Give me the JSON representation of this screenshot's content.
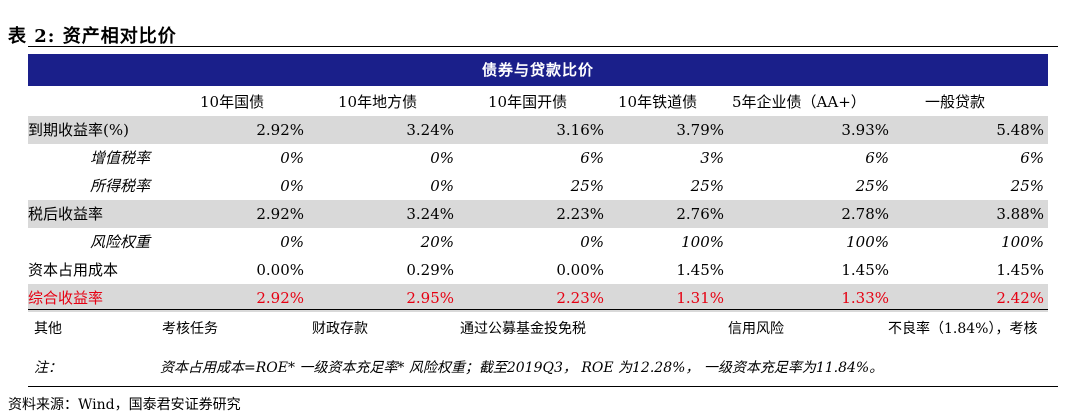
{
  "title": "表 2:  资产相对比价",
  "banner": "债券与贷款比价",
  "columns": [
    "10年国债",
    "10年地方债",
    "10年国开债",
    "10年铁道债",
    "5年企业债（AA+）",
    "一般贷款"
  ],
  "rows": [
    {
      "label": "到期收益率(%)",
      "values": [
        "2.92%",
        "3.24%",
        "3.16%",
        "3.79%",
        "3.93%",
        "5.48%"
      ]
    },
    {
      "label": "增值税率",
      "values": [
        "0%",
        "0%",
        "6%",
        "3%",
        "6%",
        "6%"
      ]
    },
    {
      "label": "所得税率",
      "values": [
        "0%",
        "0%",
        "25%",
        "25%",
        "25%",
        "25%"
      ]
    },
    {
      "label": "税后收益率",
      "values": [
        "2.92%",
        "3.24%",
        "2.23%",
        "2.76%",
        "2.78%",
        "3.88%"
      ]
    },
    {
      "label": "风险权重",
      "values": [
        "0%",
        "20%",
        "0%",
        "100%",
        "100%",
        "100%"
      ]
    },
    {
      "label": "资本占用成本",
      "values": [
        "0.00%",
        "0.29%",
        "0.00%",
        "1.45%",
        "1.45%",
        "1.45%"
      ]
    },
    {
      "label": "综合收益率",
      "values": [
        "2.92%",
        "2.95%",
        "2.23%",
        "1.31%",
        "1.33%",
        "2.42%"
      ]
    }
  ],
  "other": {
    "label": "其他",
    "items": [
      "考核任务",
      "财政存款",
      "通过公募基金投免税",
      "信用风险",
      "不良率（1.84%），考核"
    ]
  },
  "note": {
    "label": "注：",
    "text": "资本占用成本=ROE* 一级资本充足率* 风险权重；截至2019Q3， ROE 为12.28%， 一级资本充足率为11.84%。"
  },
  "source": "资料来源：Wind，国泰君安证券研究",
  "colors": {
    "banner": "#1a1f8a",
    "shade": "#d9d9d9",
    "highlight": "#e60012"
  }
}
